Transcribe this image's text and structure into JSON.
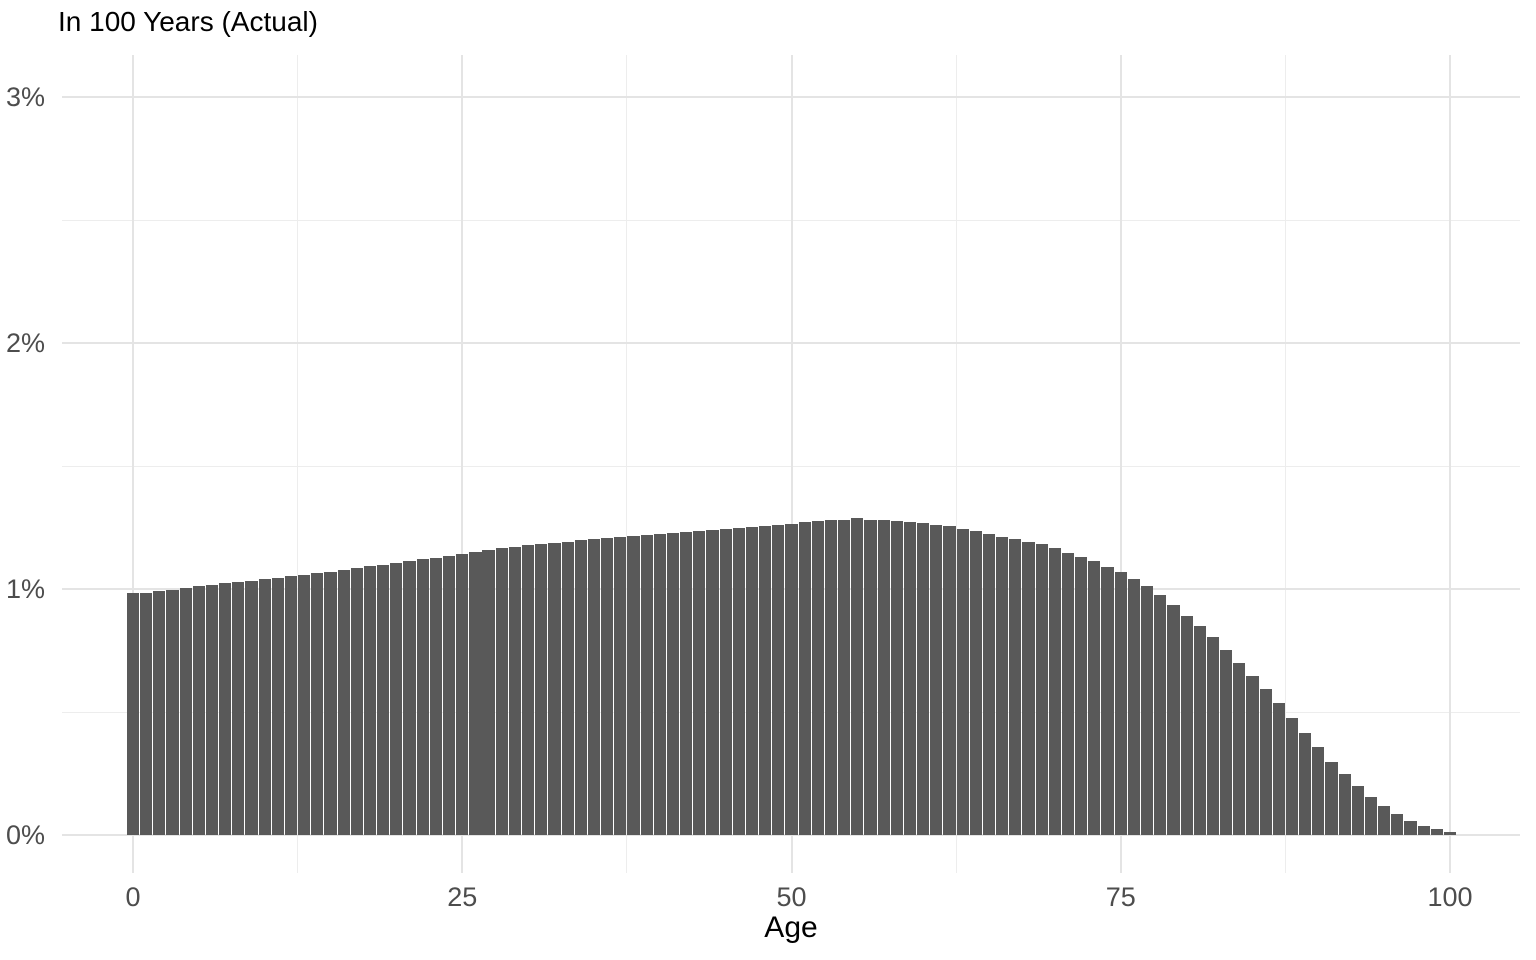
{
  "chart_data": {
    "type": "bar",
    "title": "In 100 Years (Actual)",
    "xlabel": "Age",
    "ylabel": "",
    "value_unit": "percent",
    "age_start": 0,
    "age_step": 1,
    "values": [
      0.982,
      0.982,
      0.99,
      0.996,
      1.005,
      1.011,
      1.018,
      1.023,
      1.028,
      1.033,
      1.04,
      1.046,
      1.053,
      1.058,
      1.065,
      1.071,
      1.078,
      1.084,
      1.092,
      1.098,
      1.106,
      1.112,
      1.12,
      1.126,
      1.134,
      1.142,
      1.15,
      1.158,
      1.165,
      1.171,
      1.177,
      1.183,
      1.188,
      1.193,
      1.198,
      1.202,
      1.207,
      1.211,
      1.215,
      1.219,
      1.223,
      1.227,
      1.231,
      1.235,
      1.239,
      1.243,
      1.248,
      1.253,
      1.258,
      1.261,
      1.266,
      1.271,
      1.276,
      1.281,
      1.28,
      1.288,
      1.281,
      1.282,
      1.277,
      1.271,
      1.267,
      1.262,
      1.255,
      1.245,
      1.234,
      1.224,
      1.213,
      1.203,
      1.192,
      1.181,
      1.166,
      1.148,
      1.132,
      1.113,
      1.091,
      1.071,
      1.04,
      1.012,
      0.975,
      0.935,
      0.89,
      0.848,
      0.803,
      0.753,
      0.701,
      0.647,
      0.592,
      0.535,
      0.475,
      0.415,
      0.356,
      0.298,
      0.246,
      0.199,
      0.156,
      0.118,
      0.085,
      0.058,
      0.038,
      0.023,
      0.014
    ],
    "x_ticks": [
      {
        "value": 0,
        "label": "0"
      },
      {
        "value": 25,
        "label": "25"
      },
      {
        "value": 50,
        "label": "50"
      },
      {
        "value": 75,
        "label": "75"
      },
      {
        "value": 100,
        "label": "100"
      }
    ],
    "y_ticks": [
      {
        "value": 0,
        "label": "0%"
      },
      {
        "value": 1,
        "label": "1%"
      },
      {
        "value": 2,
        "label": "2%"
      },
      {
        "value": 3,
        "label": "3%"
      }
    ],
    "x_minor_gridlines": [
      12.5,
      37.5,
      62.5,
      87.5
    ],
    "y_minor_gridlines": [
      0.5,
      1.5,
      2.5
    ],
    "xlim": [
      -5.4,
      105.3
    ],
    "ylim": [
      -0.15,
      3.17
    ],
    "grid": true,
    "legend": "none",
    "bar_color": "#595959",
    "grid_major_color": "#e4e4e4",
    "grid_minor_color": "#ededed",
    "axis_text_color": "#4d4d4d",
    "title_color": "#000000",
    "background_color": "#ffffff"
  }
}
